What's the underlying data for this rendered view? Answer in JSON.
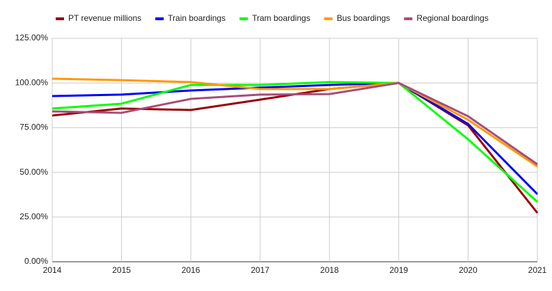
{
  "chart_data": {
    "type": "line",
    "x": [
      2014,
      2015,
      2016,
      2017,
      2018,
      2019,
      2020,
      2021
    ],
    "xlim": [
      2014,
      2021
    ],
    "xticks": [
      2014,
      2015,
      2016,
      2017,
      2018,
      2019,
      2020,
      2021
    ],
    "ylim": [
      0,
      125
    ],
    "yticks": [
      {
        "value": 0,
        "label": "0.00%"
      },
      {
        "value": 25,
        "label": "25.00%"
      },
      {
        "value": 50,
        "label": "50.00%"
      },
      {
        "value": 75,
        "label": "75.00%"
      },
      {
        "value": 100,
        "label": "100.00%"
      },
      {
        "value": 125,
        "label": "125.00%"
      }
    ],
    "grid": true,
    "legend": "top-left",
    "series": [
      {
        "name": "PT revenue millions",
        "color": "#990000",
        "values": [
          81.8,
          85.7,
          84.9,
          90.7,
          96.6,
          100,
          76.3,
          27.3
        ]
      },
      {
        "name": "Train boardings",
        "color": "#0000ff",
        "values": [
          92.7,
          93.5,
          95.8,
          97.4,
          98.9,
          100,
          77.1,
          37.8
        ]
      },
      {
        "name": "Tram boardings",
        "color": "#00ff00",
        "values": [
          85.7,
          88.4,
          98.9,
          98.9,
          100.5,
          100,
          68.5,
          33.5
        ]
      },
      {
        "name": "Bus boardings",
        "color": "#ff9900",
        "values": [
          102.4,
          101.6,
          100.5,
          96.6,
          96.6,
          100,
          79.4,
          53.3
        ]
      },
      {
        "name": "Regional boardings",
        "color": "#a64d79",
        "values": [
          84.1,
          83.3,
          91.1,
          93.5,
          93.8,
          100,
          81.4,
          54.5
        ]
      }
    ]
  }
}
